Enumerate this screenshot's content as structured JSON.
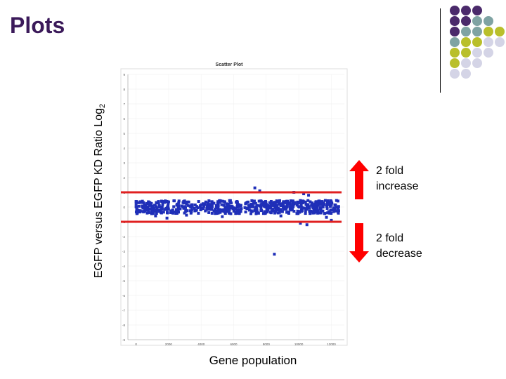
{
  "slide": {
    "title": "Plots",
    "ylabel_main": "EGFP versus EGFP KD  Ratio Log",
    "ylabel_sub": "2",
    "xlabel": "Gene population"
  },
  "annotations": {
    "increase": "2 fold\nincrease",
    "decrease": "2 fold\ndecrease",
    "arrow_color": "#ff0000",
    "line_color": "#e02020"
  },
  "decoration": {
    "dot_colors": {
      "purple": "#4b2a6b",
      "teal": "#7fa3a3",
      "olive": "#b9bf2b",
      "lavender": "#d4d4e6"
    }
  },
  "chart_data": {
    "type": "scatter",
    "title": "Scatter Plot",
    "xlabel": "",
    "ylabel": "",
    "xlim": [
      -500,
      12800
    ],
    "ylim": [
      -9,
      9
    ],
    "x_ticks": [
      "0",
      "2000",
      "4000",
      "6000",
      "8000",
      "10000",
      "12000"
    ],
    "y_ticks": [
      "9",
      "8",
      "7",
      "6",
      "5",
      "4",
      "3",
      "2",
      "1",
      "0",
      "-1",
      "-2",
      "-3",
      "-4",
      "-5",
      "-6",
      "-7",
      "-8",
      "-9"
    ],
    "reference_lines": [
      1,
      -1
    ],
    "grid": true,
    "point_color": "#1f2fb8",
    "series": [
      {
        "band": {
          "x_range": [
            0,
            12500
          ],
          "y_range": [
            -0.45,
            0.45
          ],
          "count": 650
        },
        "points": [
          [
            7300,
            1.3
          ],
          [
            7600,
            1.1
          ],
          [
            9700,
            1.0
          ],
          [
            10300,
            0.9
          ],
          [
            10600,
            0.8
          ],
          [
            1200,
            -0.6
          ],
          [
            3100,
            -0.55
          ],
          [
            5300,
            -0.65
          ],
          [
            8900,
            -0.6
          ],
          [
            11700,
            -0.7
          ],
          [
            1900,
            -0.75
          ],
          [
            10100,
            -1.1
          ],
          [
            10500,
            -1.2
          ],
          [
            12000,
            -0.9
          ],
          [
            8500,
            -3.2
          ]
        ]
      }
    ]
  }
}
